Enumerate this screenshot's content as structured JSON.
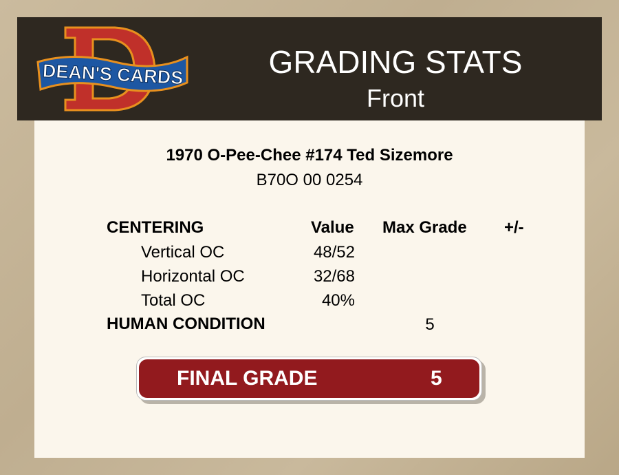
{
  "header": {
    "logo_text": "DEAN'S CARDS",
    "title": "GRADING STATS",
    "subtitle": "Front"
  },
  "card": {
    "name": "1970 O-Pee-Chee #174 Ted Sizemore",
    "serial": "B70O 00 0254"
  },
  "table": {
    "section": "CENTERING",
    "columns": [
      "Value",
      "Max Grade",
      "+/-"
    ],
    "rows": [
      {
        "label": "Vertical OC",
        "value": "48/52"
      },
      {
        "label": "Horizontal OC",
        "value": "32/68"
      },
      {
        "label": "Total OC",
        "value": "40%"
      }
    ],
    "human_condition": {
      "label": "HUMAN CONDITION",
      "max_grade": "5"
    }
  },
  "final_grade": {
    "label": "FINAL GRADE",
    "value": "5"
  },
  "colors": {
    "header_bg": "#2e2820",
    "panel_bg": "#fbf6ec",
    "grade_red": "#921a1e"
  }
}
